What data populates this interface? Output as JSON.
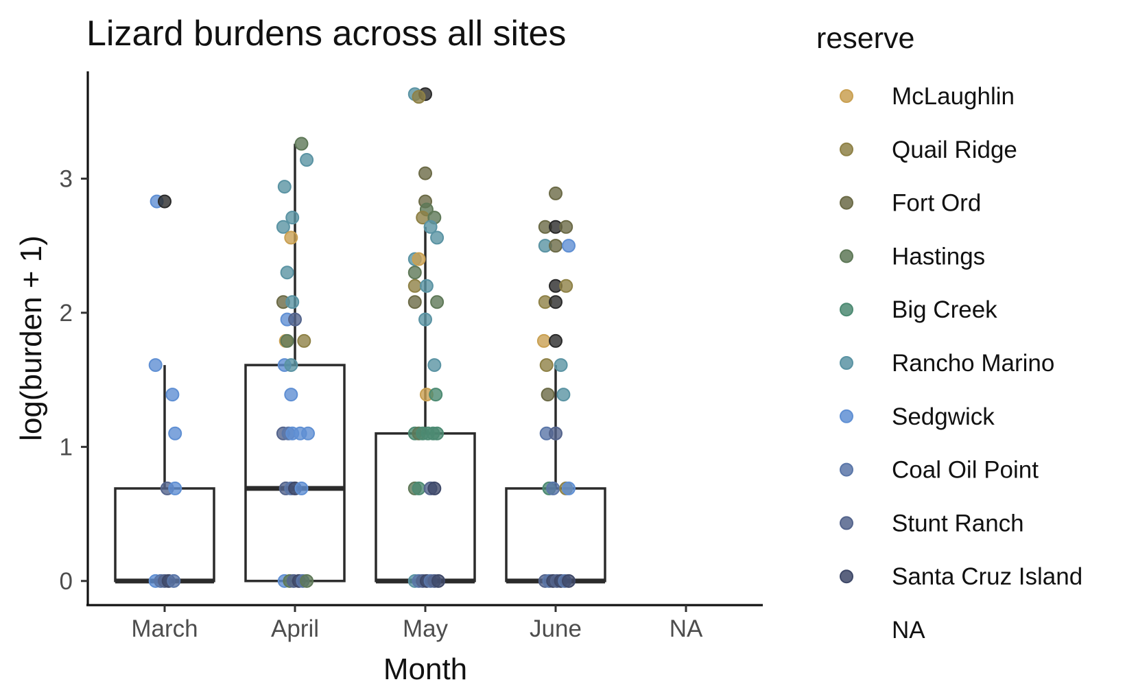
{
  "chart_data": {
    "type": "box",
    "title": "Lizard burdens across all sites",
    "xlabel": "Month",
    "ylabel": "log(burden + 1)",
    "categories": [
      "March",
      "April",
      "May",
      "June",
      "NA"
    ],
    "yticks": [
      0,
      1,
      2,
      3
    ],
    "ylim": [
      -0.18,
      3.8
    ],
    "grid": false,
    "legend": {
      "title": "reserve",
      "position": "right",
      "entries": [
        {
          "name": "McLaughlin",
          "color": "#C9A052"
        },
        {
          "name": "Quail Ridge",
          "color": "#8E8146"
        },
        {
          "name": "Fort Ord",
          "color": "#6B6A46"
        },
        {
          "name": "Hastings",
          "color": "#5E7857"
        },
        {
          "name": "Big Creek",
          "color": "#4C8A72"
        },
        {
          "name": "Rancho Marino",
          "color": "#5A93A3"
        },
        {
          "name": "Sedgwick",
          "color": "#5F8FD3"
        },
        {
          "name": "Coal Oil Point",
          "color": "#5A76A8"
        },
        {
          "name": "Stunt Ranch",
          "color": "#54648C"
        },
        {
          "name": "Santa Cruz Island",
          "color": "#3E4868"
        },
        {
          "name": "NA",
          "color": "#2a2a2a"
        }
      ]
    },
    "boxes": [
      {
        "category": "March",
        "q1": 0,
        "median": 0,
        "q3": 0.69,
        "whisker_low": 0,
        "whisker_high": 1.61
      },
      {
        "category": "April",
        "q1": 0,
        "median": 0.69,
        "q3": 1.61,
        "whisker_low": 0,
        "whisker_high": 3.26
      },
      {
        "category": "May",
        "q1": 0,
        "median": 0,
        "q3": 1.1,
        "whisker_low": 0,
        "whisker_high": 2.64
      },
      {
        "category": "June",
        "q1": 0,
        "median": 0,
        "q3": 0.69,
        "whisker_low": 0,
        "whisker_high": 1.61
      }
    ],
    "points": [
      {
        "category": "March",
        "y": 2.83,
        "reserve": "Sedgwick",
        "jitter": -0.06
      },
      {
        "category": "March",
        "y": 2.83,
        "reserve": "NA",
        "jitter": 0.0
      },
      {
        "category": "March",
        "y": 1.61,
        "reserve": "Sedgwick",
        "jitter": -0.07
      },
      {
        "category": "March",
        "y": 1.39,
        "reserve": "Sedgwick",
        "jitter": 0.06
      },
      {
        "category": "March",
        "y": 1.1,
        "reserve": "Sedgwick",
        "jitter": 0.08
      },
      {
        "category": "March",
        "y": 0.69,
        "reserve": "Stunt Ranch",
        "jitter": 0.02
      },
      {
        "category": "March",
        "y": 0.69,
        "reserve": "Sedgwick",
        "jitter": 0.08
      },
      {
        "category": "March",
        "y": 0,
        "reserve": "Sedgwick",
        "jitter": -0.07
      },
      {
        "category": "March",
        "y": 0,
        "reserve": "Coal Oil Point",
        "jitter": -0.03
      },
      {
        "category": "March",
        "y": 0,
        "reserve": "Stunt Ranch",
        "jitter": 0.0
      },
      {
        "category": "March",
        "y": 0,
        "reserve": "Santa Cruz Island",
        "jitter": 0.03
      },
      {
        "category": "March",
        "y": 0,
        "reserve": "Coal Oil Point",
        "jitter": 0.07
      },
      {
        "category": "April",
        "y": 3.26,
        "reserve": "Hastings",
        "jitter": 0.05
      },
      {
        "category": "April",
        "y": 3.14,
        "reserve": "Rancho Marino",
        "jitter": 0.09
      },
      {
        "category": "April",
        "y": 2.94,
        "reserve": "Rancho Marino",
        "jitter": -0.08
      },
      {
        "category": "April",
        "y": 2.71,
        "reserve": "Rancho Marino",
        "jitter": -0.02
      },
      {
        "category": "April",
        "y": 2.64,
        "reserve": "Rancho Marino",
        "jitter": -0.09
      },
      {
        "category": "April",
        "y": 2.56,
        "reserve": "McLaughlin",
        "jitter": -0.03
      },
      {
        "category": "April",
        "y": 2.3,
        "reserve": "Rancho Marino",
        "jitter": -0.06
      },
      {
        "category": "April",
        "y": 2.08,
        "reserve": "Fort Ord",
        "jitter": -0.09
      },
      {
        "category": "April",
        "y": 2.08,
        "reserve": "Rancho Marino",
        "jitter": -0.02
      },
      {
        "category": "April",
        "y": 1.95,
        "reserve": "Sedgwick",
        "jitter": -0.06
      },
      {
        "category": "April",
        "y": 1.95,
        "reserve": "Stunt Ranch",
        "jitter": 0.0
      },
      {
        "category": "April",
        "y": 1.79,
        "reserve": "McLaughlin",
        "jitter": -0.07
      },
      {
        "category": "April",
        "y": 1.79,
        "reserve": "Hastings",
        "jitter": -0.06
      },
      {
        "category": "April",
        "y": 1.79,
        "reserve": "Quail Ridge",
        "jitter": 0.07
      },
      {
        "category": "April",
        "y": 1.61,
        "reserve": "Sedgwick",
        "jitter": -0.08
      },
      {
        "category": "April",
        "y": 1.61,
        "reserve": "Rancho Marino",
        "jitter": -0.03
      },
      {
        "category": "April",
        "y": 1.39,
        "reserve": "Sedgwick",
        "jitter": -0.03
      },
      {
        "category": "April",
        "y": 1.1,
        "reserve": "Stunt Ranch",
        "jitter": -0.09
      },
      {
        "category": "April",
        "y": 1.1,
        "reserve": "Coal Oil Point",
        "jitter": -0.05
      },
      {
        "category": "April",
        "y": 1.1,
        "reserve": "Sedgwick",
        "jitter": -0.02
      },
      {
        "category": "April",
        "y": 1.1,
        "reserve": "Sedgwick",
        "jitter": 0.04
      },
      {
        "category": "April",
        "y": 1.1,
        "reserve": "Sedgwick",
        "jitter": 0.1
      },
      {
        "category": "April",
        "y": 0.69,
        "reserve": "Stunt Ranch",
        "jitter": -0.07
      },
      {
        "category": "April",
        "y": 0.69,
        "reserve": "Coal Oil Point",
        "jitter": -0.03
      },
      {
        "category": "April",
        "y": 0.69,
        "reserve": "Santa Cruz Island",
        "jitter": 0.0
      },
      {
        "category": "April",
        "y": 0.69,
        "reserve": "Sedgwick",
        "jitter": 0.05
      },
      {
        "category": "April",
        "y": 0,
        "reserve": "Sedgwick",
        "jitter": -0.08
      },
      {
        "category": "April",
        "y": 0,
        "reserve": "Hastings",
        "jitter": -0.04
      },
      {
        "category": "April",
        "y": 0,
        "reserve": "Stunt Ranch",
        "jitter": -0.01
      },
      {
        "category": "April",
        "y": 0,
        "reserve": "Santa Cruz Island",
        "jitter": 0.03
      },
      {
        "category": "April",
        "y": 0,
        "reserve": "Coal Oil Point",
        "jitter": 0.06
      },
      {
        "category": "April",
        "y": 0,
        "reserve": "Hastings",
        "jitter": 0.09
      },
      {
        "category": "May",
        "y": 3.63,
        "reserve": "Rancho Marino",
        "jitter": -0.08
      },
      {
        "category": "May",
        "y": 3.63,
        "reserve": "NA",
        "jitter": 0.0
      },
      {
        "category": "May",
        "y": 3.61,
        "reserve": "Quail Ridge",
        "jitter": -0.05
      },
      {
        "category": "May",
        "y": 3.04,
        "reserve": "Fort Ord",
        "jitter": 0.0
      },
      {
        "category": "May",
        "y": 2.83,
        "reserve": "Fort Ord",
        "jitter": 0.0
      },
      {
        "category": "May",
        "y": 2.77,
        "reserve": "Hastings",
        "jitter": 0.01
      },
      {
        "category": "May",
        "y": 2.71,
        "reserve": "Quail Ridge",
        "jitter": -0.02
      },
      {
        "category": "May",
        "y": 2.71,
        "reserve": "Hastings",
        "jitter": 0.07
      },
      {
        "category": "May",
        "y": 2.64,
        "reserve": "Rancho Marino",
        "jitter": 0.04
      },
      {
        "category": "May",
        "y": 2.56,
        "reserve": "Rancho Marino",
        "jitter": 0.09
      },
      {
        "category": "May",
        "y": 2.4,
        "reserve": "Rancho Marino",
        "jitter": -0.08
      },
      {
        "category": "May",
        "y": 2.4,
        "reserve": "McLaughlin",
        "jitter": -0.05
      },
      {
        "category": "May",
        "y": 2.3,
        "reserve": "Hastings",
        "jitter": -0.08
      },
      {
        "category": "May",
        "y": 2.2,
        "reserve": "Quail Ridge",
        "jitter": -0.08
      },
      {
        "category": "May",
        "y": 2.2,
        "reserve": "Rancho Marino",
        "jitter": 0.01
      },
      {
        "category": "May",
        "y": 2.08,
        "reserve": "Fort Ord",
        "jitter": -0.08
      },
      {
        "category": "May",
        "y": 2.08,
        "reserve": "Hastings",
        "jitter": 0.09
      },
      {
        "category": "May",
        "y": 1.95,
        "reserve": "Rancho Marino",
        "jitter": 0.0
      },
      {
        "category": "May",
        "y": 1.61,
        "reserve": "Rancho Marino",
        "jitter": 0.07
      },
      {
        "category": "May",
        "y": 1.39,
        "reserve": "McLaughlin",
        "jitter": 0.01
      },
      {
        "category": "May",
        "y": 1.39,
        "reserve": "Big Creek",
        "jitter": 0.08
      },
      {
        "category": "May",
        "y": 1.1,
        "reserve": "Big Creek",
        "jitter": -0.08
      },
      {
        "category": "May",
        "y": 1.1,
        "reserve": "Hastings",
        "jitter": -0.05
      },
      {
        "category": "May",
        "y": 1.1,
        "reserve": "Big Creek",
        "jitter": -0.02
      },
      {
        "category": "May",
        "y": 1.1,
        "reserve": "Big Creek",
        "jitter": 0.02
      },
      {
        "category": "May",
        "y": 1.1,
        "reserve": "Big Creek",
        "jitter": 0.06
      },
      {
        "category": "May",
        "y": 1.1,
        "reserve": "Big Creek",
        "jitter": 0.09
      },
      {
        "category": "May",
        "y": 0.69,
        "reserve": "Hastings",
        "jitter": -0.08
      },
      {
        "category": "May",
        "y": 0.69,
        "reserve": "Big Creek",
        "jitter": -0.05
      },
      {
        "category": "May",
        "y": 0.69,
        "reserve": "Stunt Ranch",
        "jitter": 0.04
      },
      {
        "category": "May",
        "y": 0.69,
        "reserve": "Santa Cruz Island",
        "jitter": 0.07
      },
      {
        "category": "May",
        "y": 0,
        "reserve": "Rancho Marino",
        "jitter": -0.08
      },
      {
        "category": "May",
        "y": 0,
        "reserve": "Coal Oil Point",
        "jitter": -0.05
      },
      {
        "category": "May",
        "y": 0,
        "reserve": "Stunt Ranch",
        "jitter": -0.02
      },
      {
        "category": "May",
        "y": 0,
        "reserve": "Santa Cruz Island",
        "jitter": 0.01
      },
      {
        "category": "May",
        "y": 0,
        "reserve": "Coal Oil Point",
        "jitter": 0.04
      },
      {
        "category": "May",
        "y": 0,
        "reserve": "Stunt Ranch",
        "jitter": 0.07
      },
      {
        "category": "May",
        "y": 0,
        "reserve": "Santa Cruz Island",
        "jitter": 0.1
      },
      {
        "category": "June",
        "y": 2.89,
        "reserve": "Fort Ord",
        "jitter": 0.0
      },
      {
        "category": "June",
        "y": 2.64,
        "reserve": "Fort Ord",
        "jitter": -0.08
      },
      {
        "category": "June",
        "y": 2.64,
        "reserve": "NA",
        "jitter": 0.0
      },
      {
        "category": "June",
        "y": 2.64,
        "reserve": "Fort Ord",
        "jitter": 0.08
      },
      {
        "category": "June",
        "y": 2.5,
        "reserve": "Rancho Marino",
        "jitter": -0.08
      },
      {
        "category": "June",
        "y": 2.5,
        "reserve": "Fort Ord",
        "jitter": 0.0
      },
      {
        "category": "June",
        "y": 2.5,
        "reserve": "Sedgwick",
        "jitter": 0.1
      },
      {
        "category": "June",
        "y": 2.2,
        "reserve": "NA",
        "jitter": 0.0
      },
      {
        "category": "June",
        "y": 2.2,
        "reserve": "Quail Ridge",
        "jitter": 0.08
      },
      {
        "category": "June",
        "y": 2.08,
        "reserve": "Quail Ridge",
        "jitter": -0.08
      },
      {
        "category": "June",
        "y": 2.08,
        "reserve": "NA",
        "jitter": 0.0
      },
      {
        "category": "June",
        "y": 1.79,
        "reserve": "McLaughlin",
        "jitter": -0.09
      },
      {
        "category": "June",
        "y": 1.79,
        "reserve": "NA",
        "jitter": 0.0
      },
      {
        "category": "June",
        "y": 1.61,
        "reserve": "Quail Ridge",
        "jitter": -0.07
      },
      {
        "category": "June",
        "y": 1.61,
        "reserve": "Rancho Marino",
        "jitter": 0.04
      },
      {
        "category": "June",
        "y": 1.39,
        "reserve": "Fort Ord",
        "jitter": -0.06
      },
      {
        "category": "June",
        "y": 1.39,
        "reserve": "Rancho Marino",
        "jitter": 0.06
      },
      {
        "category": "June",
        "y": 1.1,
        "reserve": "Coal Oil Point",
        "jitter": -0.07
      },
      {
        "category": "June",
        "y": 1.1,
        "reserve": "Stunt Ranch",
        "jitter": 0.0
      },
      {
        "category": "June",
        "y": 0.69,
        "reserve": "Big Creek",
        "jitter": -0.05
      },
      {
        "category": "June",
        "y": 0.69,
        "reserve": "Coal Oil Point",
        "jitter": -0.02
      },
      {
        "category": "June",
        "y": 0.69,
        "reserve": "Quail Ridge",
        "jitter": 0.08
      },
      {
        "category": "June",
        "y": 0.69,
        "reserve": "Sedgwick",
        "jitter": 0.1
      },
      {
        "category": "June",
        "y": 0,
        "reserve": "Stunt Ranch",
        "jitter": -0.08
      },
      {
        "category": "June",
        "y": 0,
        "reserve": "Coal Oil Point",
        "jitter": -0.05
      },
      {
        "category": "June",
        "y": 0,
        "reserve": "Santa Cruz Island",
        "jitter": -0.02
      },
      {
        "category": "June",
        "y": 0,
        "reserve": "Stunt Ranch",
        "jitter": 0.01
      },
      {
        "category": "June",
        "y": 0,
        "reserve": "Santa Cruz Island",
        "jitter": 0.04
      },
      {
        "category": "June",
        "y": 0,
        "reserve": "Coal Oil Point",
        "jitter": 0.07
      },
      {
        "category": "June",
        "y": 0,
        "reserve": "Santa Cruz Island",
        "jitter": 0.1
      }
    ]
  }
}
